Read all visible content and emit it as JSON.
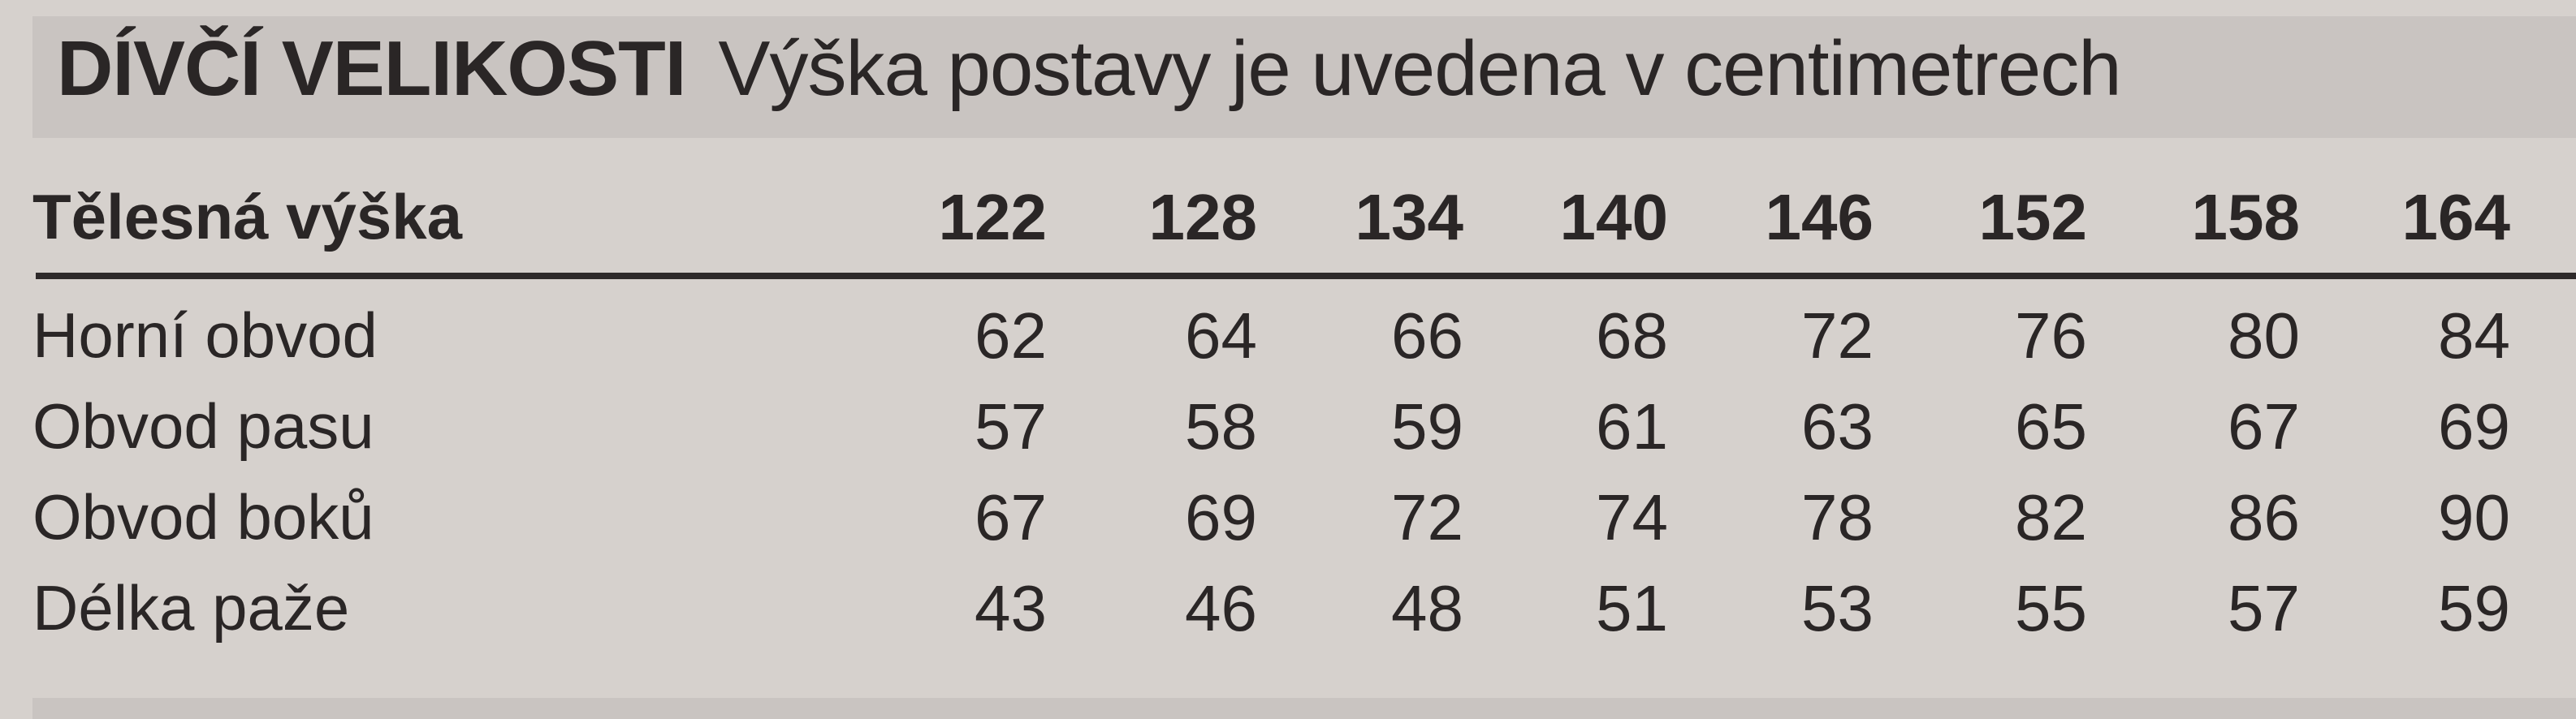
{
  "title": {
    "bold": "DÍVČÍ VELIKOSTI",
    "subtitle": "Výška postavy je uvedena v centimetrech"
  },
  "table": {
    "header": {
      "label": "Tělesná výška",
      "values": [
        "122",
        "128",
        "134",
        "140",
        "146",
        "152",
        "158",
        "164"
      ]
    },
    "rows": [
      {
        "label": "Horní obvod",
        "values": [
          "62",
          "64",
          "66",
          "68",
          "72",
          "76",
          "80",
          "84"
        ]
      },
      {
        "label": "Obvod pasu",
        "values": [
          "57",
          "58",
          "59",
          "61",
          "63",
          "65",
          "67",
          "69"
        ]
      },
      {
        "label": "Obvod boků",
        "values": [
          "67",
          "69",
          "72",
          "74",
          "78",
          "82",
          "86",
          "90"
        ]
      },
      {
        "label": "Délka paže",
        "values": [
          "43",
          "46",
          "48",
          "51",
          "53",
          "55",
          "57",
          "59"
        ]
      }
    ]
  }
}
